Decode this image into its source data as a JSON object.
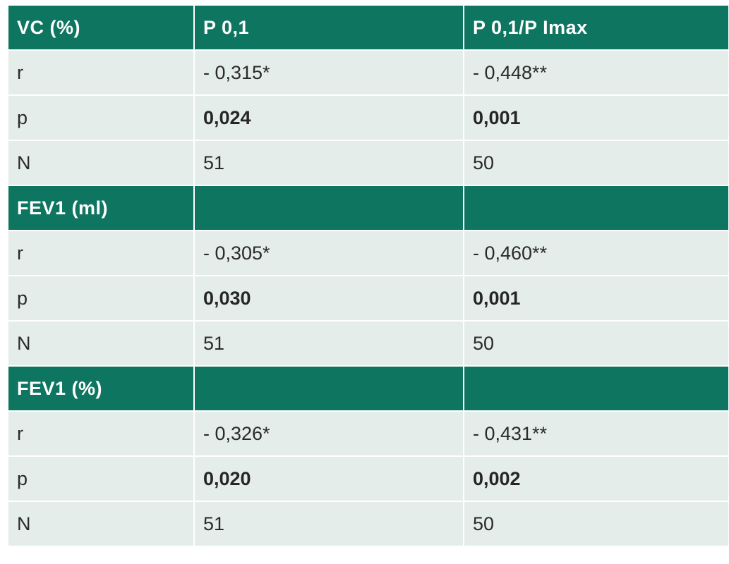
{
  "table": {
    "sections": [
      {
        "header": [
          "VC (%)",
          "P 0,1",
          "P 0,1/P Imax"
        ],
        "rows": [
          {
            "label": "r",
            "p01": "- 0,315*",
            "ratio": "- 0,448**",
            "bold": false
          },
          {
            "label": "p",
            "p01": "0,024",
            "ratio": "0,001",
            "bold": true
          },
          {
            "label": "N",
            "p01": "51",
            "ratio": "50",
            "bold": false
          }
        ]
      },
      {
        "header": [
          "FEV1 (ml)",
          "",
          ""
        ],
        "rows": [
          {
            "label": "r",
            "p01": "- 0,305*",
            "ratio": "- 0,460**",
            "bold": false
          },
          {
            "label": "p",
            "p01": "0,030",
            "ratio": "0,001",
            "bold": true
          },
          {
            "label": "N",
            "p01": "51",
            "ratio": "50",
            "bold": false
          }
        ]
      },
      {
        "header": [
          "FEV1 (%)",
          "",
          ""
        ],
        "rows": [
          {
            "label": "r",
            "p01": "- 0,326*",
            "ratio": "- 0,431**",
            "bold": false
          },
          {
            "label": "p",
            "p01": "0,020",
            "ratio": "0,002",
            "bold": true
          },
          {
            "label": "N",
            "p01": "51",
            "ratio": "50",
            "bold": false
          }
        ]
      }
    ]
  },
  "colors": {
    "header_bg": "#0e7660",
    "header_text": "#ffffff",
    "row_bg": "#e4ede9",
    "text": "#2a2a2a"
  }
}
